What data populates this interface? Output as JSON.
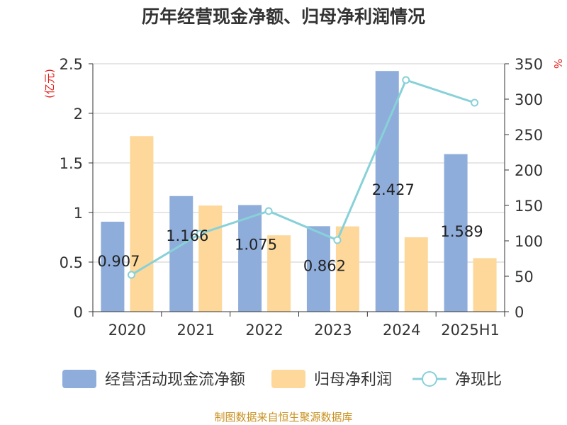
{
  "title": "历年经营现金净额、归母净利润情况",
  "source": "制图数据来自恒生聚源数据库",
  "colors": {
    "bar_cash": "#8eaddb",
    "bar_profit": "#fdd89a",
    "line_ratio": "#88d1d8",
    "unit_label": "#e0201b",
    "axis": "#333333",
    "grid": "#cccccc"
  },
  "chart_data": {
    "type": "bar",
    "categories": [
      "2020",
      "2021",
      "2022",
      "2023",
      "2024",
      "2025H1"
    ],
    "left_axis_unit": "(亿元)",
    "right_axis_unit": "%",
    "ylim_left": [
      0,
      2.5
    ],
    "yticks_left": [
      "0",
      "0.5",
      "1",
      "1.5",
      "2",
      "2.5"
    ],
    "ylim_right": [
      0,
      350
    ],
    "yticks_right": [
      "0",
      "50",
      "100",
      "150",
      "200",
      "250",
      "300",
      "350"
    ],
    "grid": true,
    "legend_position": "bottom",
    "series": [
      {
        "name": "经营活动现金流净额",
        "type": "bar",
        "axis": "left",
        "values": [
          0.907,
          1.166,
          1.075,
          0.862,
          2.427,
          1.589
        ],
        "labels": [
          "0.907",
          "1.166",
          "1.075",
          "0.862",
          "2.427",
          "1.589"
        ]
      },
      {
        "name": "归母净利润",
        "type": "bar",
        "axis": "left",
        "values": [
          1.77,
          1.07,
          0.77,
          0.86,
          0.75,
          0.54
        ]
      },
      {
        "name": "净现比",
        "type": "line",
        "axis": "right",
        "values": [
          52,
          110,
          142,
          101,
          327,
          295
        ]
      }
    ]
  }
}
